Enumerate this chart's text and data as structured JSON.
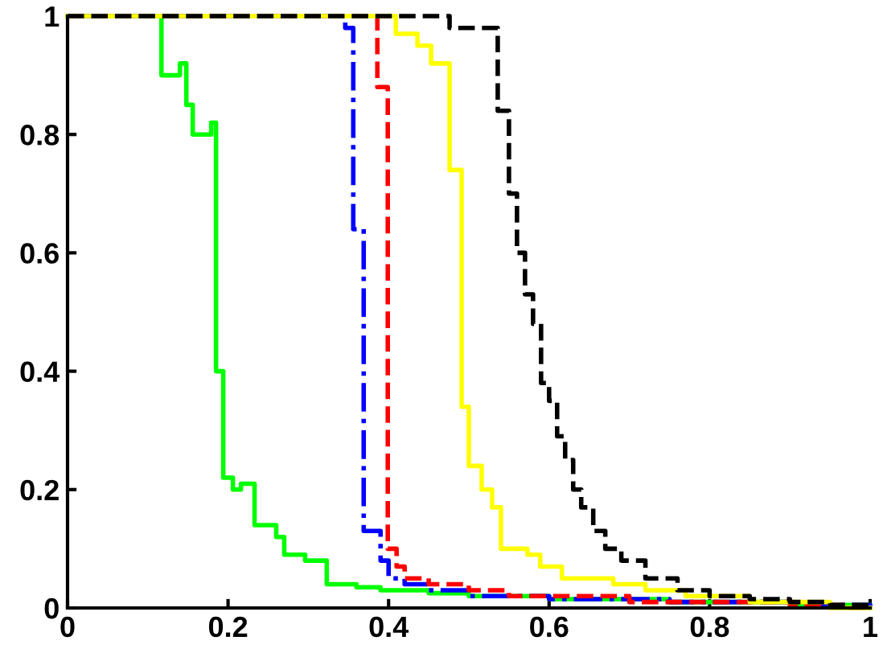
{
  "chart_data": {
    "type": "step",
    "xlim": [
      0,
      1
    ],
    "ylim": [
      0,
      1
    ],
    "xticks": [
      0,
      {
        "value": 0.2,
        "label": "0.2"
      },
      {
        "value": 0.4,
        "label": "0.4"
      },
      {
        "value": 0.6,
        "label": "0.6"
      },
      {
        "value": 0.8,
        "label": "0.8"
      },
      1
    ],
    "yticks": [
      0,
      {
        "value": 0.2,
        "label": "0.2"
      },
      {
        "value": 0.4,
        "label": "0.4"
      },
      {
        "value": 0.6,
        "label": "0.6"
      },
      {
        "value": 0.8,
        "label": "0.8"
      },
      1
    ],
    "grid": false,
    "series": [
      {
        "color": "#00ff00",
        "line_style": "solid",
        "x": [
          0,
          0.117,
          0.14,
          0.148,
          0.156,
          0.179,
          0.185,
          0.194,
          0.206,
          0.216,
          0.233,
          0.26,
          0.27,
          0.296,
          0.323,
          0.36,
          0.39,
          0.45,
          0.5,
          0.6,
          0.75,
          0.9,
          1
        ],
        "values": [
          1,
          0.9,
          0.92,
          0.85,
          0.8,
          0.82,
          0.4,
          0.22,
          0.2,
          0.21,
          0.14,
          0.12,
          0.09,
          0.08,
          0.04,
          0.035,
          0.03,
          0.025,
          0.02,
          0.015,
          0.01,
          0.005,
          0
        ]
      },
      {
        "color": "#0000ff",
        "line_style": "dashdot",
        "x": [
          0,
          0.346,
          0.356,
          0.369,
          0.39,
          0.4,
          0.42,
          0.45,
          0.5,
          0.6,
          0.75,
          0.9,
          1
        ],
        "values": [
          1,
          0.98,
          0.64,
          0.13,
          0.08,
          0.05,
          0.04,
          0.03,
          0.02,
          0.015,
          0.01,
          0.005,
          0
        ]
      },
      {
        "color": "#ff0000",
        "line_style": "dashed",
        "x": [
          0,
          0.386,
          0.399,
          0.41,
          0.42,
          0.45,
          0.5,
          0.55,
          0.7,
          0.9,
          0.97,
          1
        ],
        "values": [
          1,
          0.88,
          0.1,
          0.07,
          0.05,
          0.04,
          0.03,
          0.02,
          0.01,
          0.005,
          0,
          0
        ]
      },
      {
        "color": "#ffff00",
        "line_style": "solid",
        "x": [
          0,
          0.409,
          0.436,
          0.453,
          0.476,
          0.491,
          0.5,
          0.516,
          0.529,
          0.54,
          0.573,
          0.589,
          0.616,
          0.68,
          0.72,
          0.77,
          0.85,
          0.95,
          1
        ],
        "values": [
          1,
          0.97,
          0.95,
          0.92,
          0.74,
          0.34,
          0.24,
          0.2,
          0.17,
          0.1,
          0.09,
          0.07,
          0.05,
          0.04,
          0.03,
          0.02,
          0.01,
          0,
          0
        ]
      },
      {
        "color": "#000000",
        "line_style": "dashed",
        "x": [
          0,
          0.476,
          0.536,
          0.55,
          0.56,
          0.57,
          0.58,
          0.59,
          0.6,
          0.61,
          0.62,
          0.63,
          0.64,
          0.655,
          0.67,
          0.69,
          0.72,
          0.76,
          0.8,
          0.85,
          0.9,
          0.95,
          1
        ],
        "values": [
          1,
          0.98,
          0.84,
          0.7,
          0.6,
          0.53,
          0.48,
          0.38,
          0.35,
          0.29,
          0.25,
          0.2,
          0.17,
          0.13,
          0.1,
          0.08,
          0.05,
          0.03,
          0.02,
          0.015,
          0.01,
          0.005,
          0
        ]
      }
    ]
  }
}
